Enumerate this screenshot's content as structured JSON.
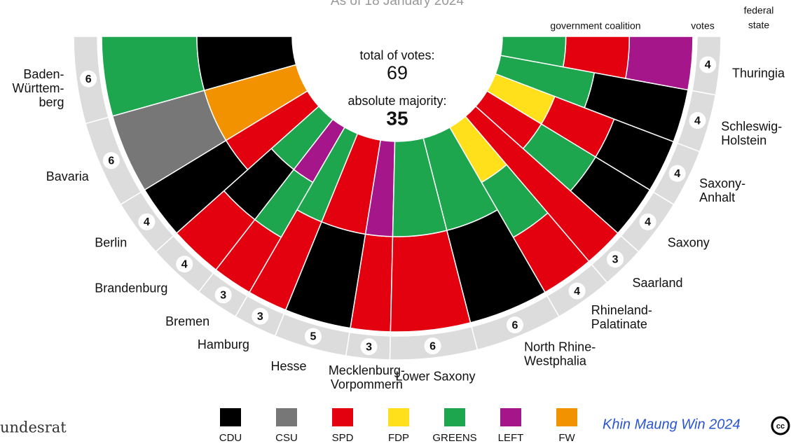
{
  "chart_data": {
    "type": "parliament",
    "title": "As of 18 January 2024",
    "center_labels": {
      "total_label": "total of votes:",
      "total": "69",
      "majority_label": "absolute majority:",
      "majority": "35"
    },
    "headers": {
      "coalition": "government coalition",
      "votes": "votes",
      "state": [
        "federal",
        "state"
      ]
    },
    "categories": [
      [
        "Baden-",
        "Württem-",
        "berg"
      ],
      [
        "Bavaria"
      ],
      [
        "Berlin"
      ],
      [
        "Brandenburg"
      ],
      [
        "Bremen"
      ],
      [
        "Hamburg"
      ],
      [
        "Hesse"
      ],
      [
        "Mecklenburg-",
        "Vorpommern"
      ],
      [
        "Lower Saxony"
      ],
      [
        "North Rhine-",
        "Westphalia"
      ],
      [
        "Rhineland-",
        "Palatinate"
      ],
      [
        "Saarland"
      ],
      [
        "Saxony"
      ],
      [
        "Saxony-",
        "Anhalt"
      ],
      [
        "Schleswig-",
        "Holstein"
      ],
      [
        "Thuringia"
      ]
    ],
    "values": [
      6,
      6,
      4,
      4,
      3,
      3,
      5,
      3,
      6,
      6,
      4,
      3,
      4,
      4,
      4,
      4
    ],
    "coalitions": [
      [
        "GREENS",
        "CDU"
      ],
      [
        "CSU",
        "FW"
      ],
      [
        "CDU",
        "SPD"
      ],
      [
        "SPD",
        "CDU",
        "GREENS"
      ],
      [
        "SPD",
        "GREENS",
        "LEFT"
      ],
      [
        "SPD",
        "GREENS"
      ],
      [
        "CDU",
        "SPD"
      ],
      [
        "SPD",
        "LEFT"
      ],
      [
        "SPD",
        "GREENS"
      ],
      [
        "CDU",
        "GREENS"
      ],
      [
        "SPD",
        "GREENS",
        "FDP"
      ],
      [
        "SPD"
      ],
      [
        "CDU",
        "GREENS",
        "SPD"
      ],
      [
        "CDU",
        "SPD",
        "FDP"
      ],
      [
        "CDU",
        "GREENS"
      ],
      [
        "LEFT",
        "SPD",
        "GREENS"
      ]
    ],
    "parties": [
      {
        "name": "CDU",
        "color": "#000000"
      },
      {
        "name": "CSU",
        "color": "#777777"
      },
      {
        "name": "SPD",
        "color": "#e3000f"
      },
      {
        "name": "FDP",
        "color": "#ffe01b"
      },
      {
        "name": "GREENS",
        "color": "#1ea64f"
      },
      {
        "name": "LEFT",
        "color": "#a5168a"
      },
      {
        "name": "FW",
        "color": "#f39200"
      }
    ],
    "ring_color": "#dcdcdc",
    "source": "undesrat",
    "credit": "Khin Maung Win 2024",
    "license": "cc"
  }
}
